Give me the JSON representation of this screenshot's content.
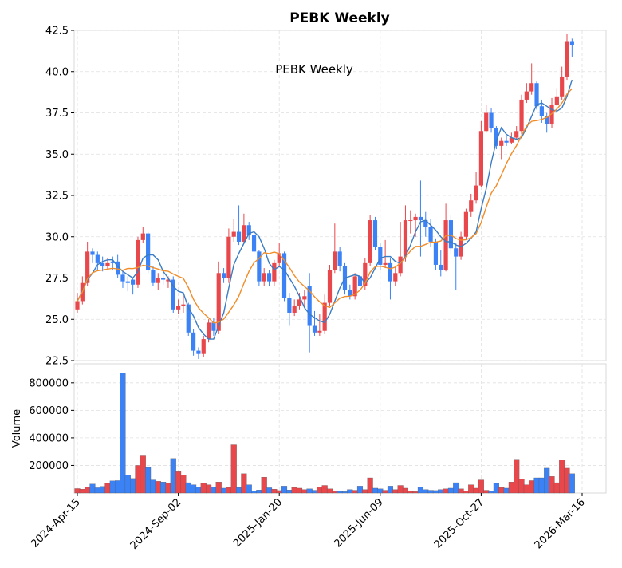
{
  "chart_data": {
    "type": "candlestick",
    "title": "PEBK  Weekly",
    "annotation": "PEBK  Weekly",
    "ylabel_volume": "Volume",
    "price_ylim": [
      22.5,
      42.5
    ],
    "price_ticks": [
      "42.5",
      "40.0",
      "37.5",
      "35.0",
      "32.5",
      "30.0",
      "27.5",
      "25.0",
      "22.5"
    ],
    "volume_ylim": [
      0,
      880000
    ],
    "volume_ticks": [
      "800000",
      "600000",
      "400000",
      "200000"
    ],
    "x_tick_labels": [
      "2024-Apr-15",
      "2024-Sep-02",
      "2025-Jan-20",
      "2025-Jun-09",
      "2025-Oct-27",
      "2026-Mar-16"
    ],
    "x_tick_week_index": [
      0,
      20,
      40,
      60,
      80,
      100
    ],
    "grid": true,
    "colors": {
      "up": "#e8474c",
      "down": "#3b82f6",
      "ma_fast": "#3a7cc4",
      "ma_slow": "#f28c28",
      "grid": "#e0e0e0"
    },
    "weekly": {
      "close": [
        26.1,
        27.2,
        29.1,
        28.9,
        28.4,
        28.2,
        28.4,
        28.4,
        27.7,
        27.3,
        27.2,
        27.1,
        29.8,
        30.2,
        28.0,
        27.2,
        27.5,
        27.4,
        27.4,
        25.6,
        25.8,
        25.9,
        24.2,
        23.1,
        22.9,
        23.8,
        24.8,
        24.3,
        27.8,
        27.5,
        30.0,
        30.3,
        29.7,
        30.7,
        30.1,
        29.1,
        27.3,
        27.8,
        27.3,
        28.4,
        29.0,
        26.3,
        25.4,
        25.8,
        26.2,
        26.4,
        24.6,
        24.2,
        24.3,
        26.0,
        28.0,
        29.1,
        28.2,
        26.8,
        26.4,
        27.6,
        27.0,
        28.4,
        31.0,
        29.4,
        28.3,
        28.4,
        27.3,
        27.8,
        28.8,
        31.0,
        31.0,
        31.2,
        31.0,
        30.6,
        29.7,
        28.3,
        28.0,
        31.0,
        29.3,
        28.8,
        30.0,
        31.5,
        32.2,
        33.1,
        36.4,
        37.5,
        36.6,
        35.5,
        35.8,
        35.7,
        36.0,
        36.4,
        38.3,
        38.8,
        39.3,
        37.9,
        37.3,
        36.8,
        38.0,
        38.5,
        39.7,
        41.8,
        41.6
      ],
      "open": [
        25.6,
        26.1,
        27.2,
        29.1,
        28.9,
        28.4,
        28.2,
        28.5,
        28.5,
        27.7,
        27.3,
        27.4,
        27.1,
        29.8,
        30.2,
        28.0,
        27.2,
        27.5,
        27.3,
        27.4,
        25.6,
        25.8,
        25.9,
        24.2,
        23.1,
        22.9,
        23.8,
        24.8,
        24.3,
        27.8,
        27.5,
        30.0,
        30.3,
        29.7,
        30.7,
        30.1,
        29.1,
        27.3,
        27.8,
        27.3,
        28.4,
        29.0,
        26.3,
        25.4,
        25.8,
        26.2,
        27.0,
        24.6,
        24.2,
        24.3,
        26.0,
        28.0,
        29.1,
        28.2,
        26.8,
        26.4,
        27.6,
        27.0,
        28.4,
        31.0,
        29.4,
        28.3,
        28.4,
        27.3,
        27.8,
        28.8,
        31.0,
        31.0,
        31.2,
        31.0,
        30.6,
        29.7,
        28.3,
        28.0,
        31.0,
        29.3,
        28.8,
        30.0,
        31.5,
        32.2,
        33.1,
        36.4,
        37.5,
        36.6,
        35.5,
        35.8,
        35.7,
        36.0,
        36.4,
        38.3,
        38.8,
        39.3,
        37.9,
        37.3,
        36.8,
        38.0,
        38.5,
        39.7,
        41.8
      ],
      "high": [
        26.6,
        27.6,
        29.7,
        29.3,
        29.1,
        28.8,
        28.7,
        28.8,
        28.9,
        27.9,
        27.6,
        27.5,
        30.0,
        30.6,
        30.3,
        28.2,
        27.8,
        27.8,
        27.6,
        27.6,
        26.2,
        26.4,
        26.0,
        24.4,
        23.3,
        24.0,
        25.0,
        25.1,
        28.5,
        28.1,
        30.5,
        31.1,
        31.9,
        31.4,
        30.9,
        30.3,
        29.2,
        28.1,
        28.0,
        28.6,
        29.6,
        29.1,
        26.6,
        26.2,
        26.6,
        26.8,
        27.8,
        25.5,
        25.3,
        26.5,
        28.3,
        30.8,
        29.4,
        28.4,
        27.1,
        27.8,
        27.9,
        28.7,
        31.3,
        31.2,
        29.6,
        29.8,
        28.7,
        28.2,
        30.9,
        31.9,
        31.6,
        31.4,
        33.4,
        31.5,
        31.1,
        29.9,
        29.2,
        32.0,
        31.3,
        29.6,
        30.3,
        31.7,
        32.6,
        33.9,
        37.0,
        38.0,
        37.8,
        36.7,
        36.0,
        36.1,
        36.3,
        36.7,
        38.6,
        39.3,
        40.5,
        39.4,
        38.3,
        37.5,
        38.4,
        39.0,
        40.3,
        42.3,
        42.0
      ],
      "low": [
        25.4,
        25.9,
        27.0,
        28.4,
        28.0,
        27.9,
        28.0,
        28.0,
        27.5,
        26.9,
        26.7,
        26.5,
        26.9,
        29.6,
        27.8,
        27.0,
        26.8,
        27.1,
        26.9,
        25.4,
        25.3,
        25.4,
        24.0,
        22.8,
        22.6,
        22.7,
        23.6,
        24.0,
        24.1,
        27.2,
        27.2,
        29.7,
        29.5,
        29.6,
        29.8,
        29.0,
        27.0,
        27.0,
        27.0,
        27.0,
        28.2,
        26.1,
        24.6,
        25.2,
        25.6,
        25.8,
        23.0,
        24.0,
        24.0,
        24.1,
        25.8,
        27.8,
        27.9,
        26.5,
        26.2,
        26.2,
        26.8,
        26.8,
        28.2,
        29.2,
        28.0,
        28.1,
        26.2,
        27.0,
        27.6,
        28.5,
        30.2,
        30.0,
        28.8,
        30.0,
        29.4,
        28.0,
        27.6,
        27.9,
        29.0,
        26.8,
        28.6,
        29.8,
        31.2,
        32.0,
        33.0,
        36.3,
        36.3,
        35.3,
        34.7,
        35.5,
        35.6,
        35.9,
        36.2,
        38.1,
        38.6,
        37.7,
        36.9,
        36.3,
        36.6,
        37.9,
        38.3,
        39.5,
        40.9
      ],
      "ma_fast": [
        26.1,
        26.7,
        27.4,
        27.8,
        28.3,
        28.5,
        28.6,
        28.6,
        28.2,
        27.9,
        27.7,
        27.5,
        27.9,
        28.7,
        28.9,
        28.9,
        28.6,
        27.9,
        27.5,
        27.0,
        26.7,
        26.6,
        25.7,
        25.2,
        24.5,
        24.1,
        23.8,
        23.8,
        24.6,
        25.4,
        26.9,
        28.3,
        29.0,
        29.6,
        30.2,
        30.3,
        30.0,
        29.3,
        28.4,
        28.0,
        28.2,
        28.0,
        27.5,
        27.0,
        26.4,
        25.7,
        25.3,
        25.1,
        24.9,
        24.8,
        25.3,
        26.1,
        26.9,
        27.5,
        27.6,
        27.7,
        27.6,
        27.2,
        27.5,
        28.1,
        28.7,
        28.8,
        28.8,
        28.5,
        28.4,
        28.8,
        29.5,
        30.3,
        30.9,
        31.0,
        30.7,
        30.4,
        30.0,
        29.7,
        29.7,
        29.5,
        29.4,
        29.6,
        29.9,
        30.3,
        31.7,
        32.9,
        34.5,
        35.8,
        36.6,
        36.2,
        36.0,
        35.9,
        36.0,
        36.6,
        37.3,
        38.0,
        38.1,
        37.9,
        37.7,
        37.6,
        37.8,
        38.5,
        39.5
      ]
    },
    "volume": [
      32000,
      28000,
      45000,
      65000,
      38000,
      48000,
      70000,
      88000,
      90000,
      870000,
      130000,
      105000,
      200000,
      275000,
      185000,
      95000,
      85000,
      80000,
      70000,
      250000,
      155000,
      130000,
      75000,
      60000,
      45000,
      70000,
      60000,
      45000,
      80000,
      35000,
      40000,
      350000,
      40000,
      140000,
      60000,
      15000,
      22000,
      115000,
      38000,
      28000,
      18000,
      50000,
      22000,
      40000,
      35000,
      25000,
      30000,
      20000,
      45000,
      55000,
      30000,
      15000,
      12000,
      10000,
      25000,
      20000,
      50000,
      25000,
      110000,
      35000,
      30000,
      20000,
      50000,
      25000,
      55000,
      35000,
      15000,
      10000,
      45000,
      25000,
      20000,
      18000,
      25000,
      30000,
      35000,
      75000,
      30000,
      15000,
      60000,
      35000,
      95000,
      20000,
      15000,
      70000,
      40000,
      35000,
      80000,
      245000,
      100000,
      60000,
      90000,
      110000,
      110000,
      180000,
      120000,
      75000,
      240000,
      180000,
      140000
    ]
  }
}
